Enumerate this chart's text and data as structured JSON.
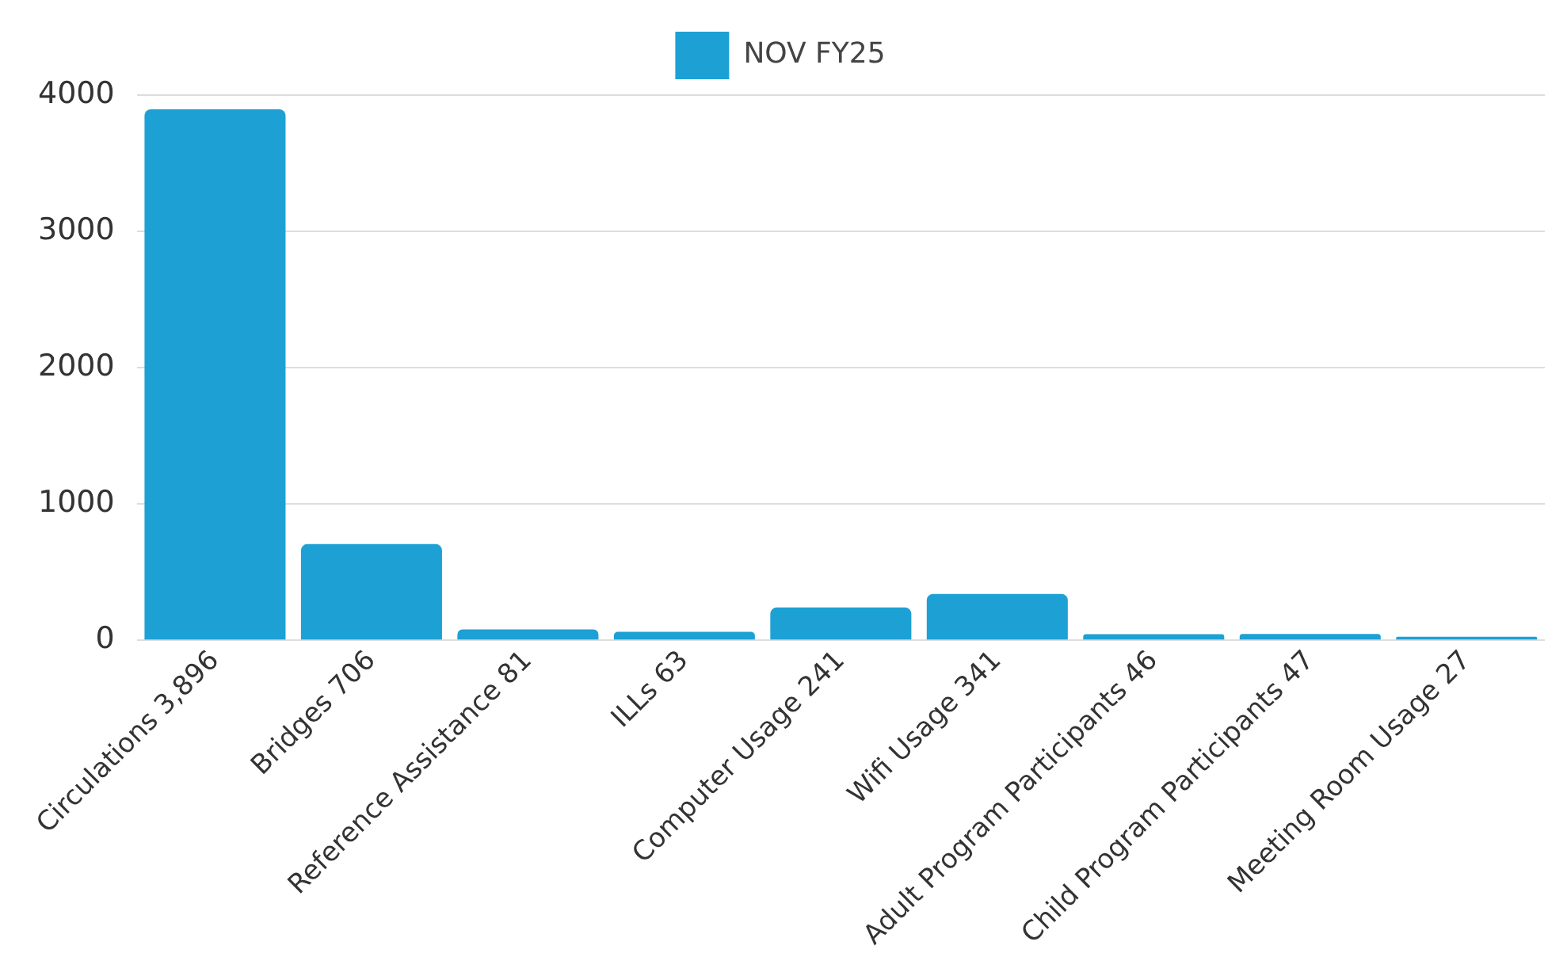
{
  "chart_data": {
    "type": "bar",
    "categories": [
      "Circulations 3,896",
      "Bridges 706",
      "Reference Assistance 81",
      "ILLs 63",
      "Computer Usage 241",
      "Wifi Usage 341",
      "Adult Program Participants 46",
      "Child Program Participants 47",
      "Meeting Room Usage 27"
    ],
    "series": [
      {
        "name": "NOV FY25",
        "color": "#1da1d5",
        "values": [
          3896,
          706,
          81,
          63,
          241,
          341,
          46,
          47,
          27
        ]
      }
    ],
    "ylim": [
      0,
      4000
    ],
    "yticks": [
      0,
      1000,
      2000,
      3000,
      4000
    ],
    "grid": "y",
    "legend": "top"
  }
}
